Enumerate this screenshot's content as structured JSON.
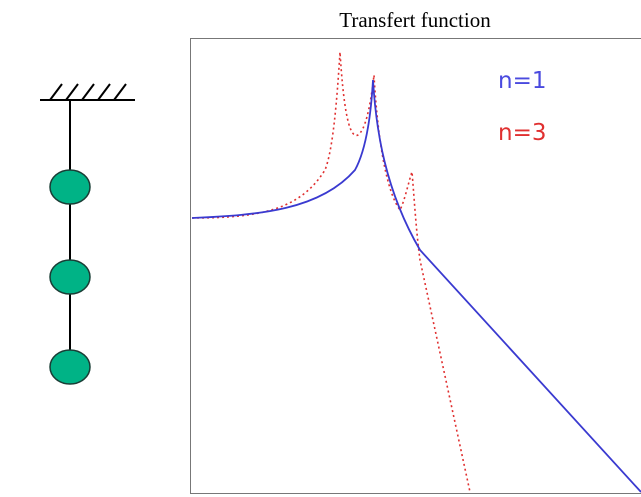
{
  "header": {
    "title": "Transfert function"
  },
  "legend": [
    {
      "label": "n=1"
    },
    {
      "label": "n=3"
    }
  ]
}
